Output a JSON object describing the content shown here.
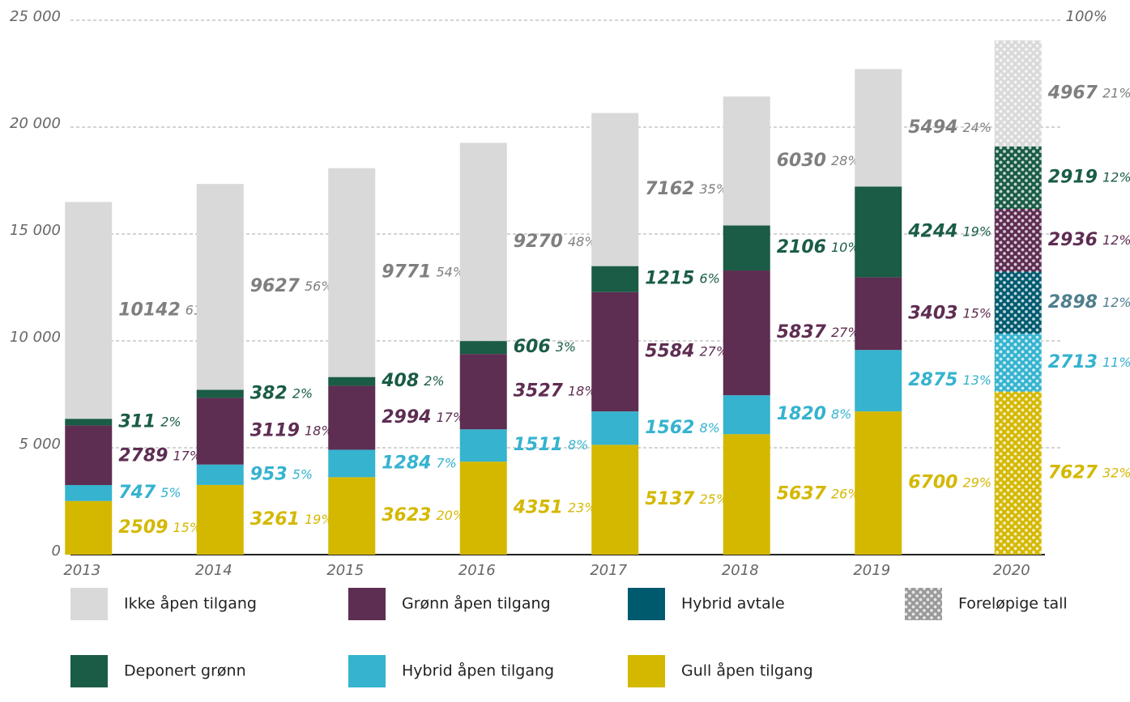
{
  "chart_data": {
    "type": "stacked_bar",
    "categories": [
      "2013",
      "2014",
      "2015",
      "2016",
      "2017",
      "2018",
      "2019",
      "2020"
    ],
    "preliminary": [
      false,
      false,
      false,
      false,
      false,
      false,
      false,
      true
    ],
    "preliminary_legend": "Foreløpige tall",
    "series": [
      {
        "name": "Gull åpen tilgang",
        "color": "#d4b800",
        "label_color": "#d4b800",
        "values": [
          2509,
          3261,
          3623,
          4351,
          5137,
          5637,
          6700,
          7627
        ],
        "share_labels": [
          "15%",
          "19%",
          "20%",
          "23%",
          "25%",
          "26%",
          "29%",
          "32%"
        ]
      },
      {
        "name": "Hybrid åpen tilgang",
        "color": "#35b3cf",
        "label_color": "#35b3cf",
        "values": [
          747,
          953,
          1284,
          1511,
          1562,
          1820,
          2875,
          2713
        ],
        "share_labels": [
          "5%",
          "5%",
          "7%",
          "8%",
          "8%",
          "8%",
          "13%",
          "11%"
        ]
      },
      {
        "name": "Hybrid avtale",
        "color": "#005a6e",
        "label_color": "#4f7f8f",
        "values": [
          null,
          null,
          null,
          null,
          null,
          null,
          null,
          2898
        ],
        "share_labels": [
          null,
          null,
          null,
          null,
          null,
          null,
          null,
          "12%"
        ]
      },
      {
        "name": "Grønn åpen tilgang",
        "color": "#5e2d52",
        "label_color": "#5e2d52",
        "values": [
          2789,
          3119,
          2994,
          3527,
          5584,
          5837,
          3403,
          2936
        ],
        "share_labels": [
          "17%",
          "18%",
          "17%",
          "18%",
          "27%",
          "27%",
          "15%",
          "12%"
        ]
      },
      {
        "name": "Deponert grønn",
        "color": "#1a5c45",
        "label_color": "#1a5c45",
        "values": [
          311,
          382,
          408,
          606,
          1215,
          2106,
          4244,
          2919
        ],
        "share_labels": [
          "2%",
          "2%",
          "2%",
          "3%",
          "6%",
          "10%",
          "19%",
          "12%"
        ]
      },
      {
        "name": "Ikke åpen tilgang",
        "color": "#d9d9d9",
        "label_color": "#7f7f7f",
        "values": [
          10142,
          9627,
          9771,
          9270,
          7162,
          6030,
          5494,
          4967
        ],
        "share_labels": [
          "61%",
          "56%",
          "54%",
          "48%",
          "35%",
          "28%",
          "24%",
          "21%"
        ]
      }
    ],
    "ylim": [
      0,
      25000
    ],
    "yticks": [
      {
        "value": 0,
        "label": "0"
      },
      {
        "value": 5000,
        "label": "5 000"
      },
      {
        "value": 10000,
        "label": "10 000"
      },
      {
        "value": 15000,
        "label": "15 000"
      },
      {
        "value": 20000,
        "label": "20 000"
      },
      {
        "value": 25000,
        "label": "25 000"
      }
    ],
    "y2lim": [
      0,
      100
    ],
    "y2ticks": [
      {
        "value": 100,
        "label": "100%"
      }
    ],
    "grid": true
  }
}
